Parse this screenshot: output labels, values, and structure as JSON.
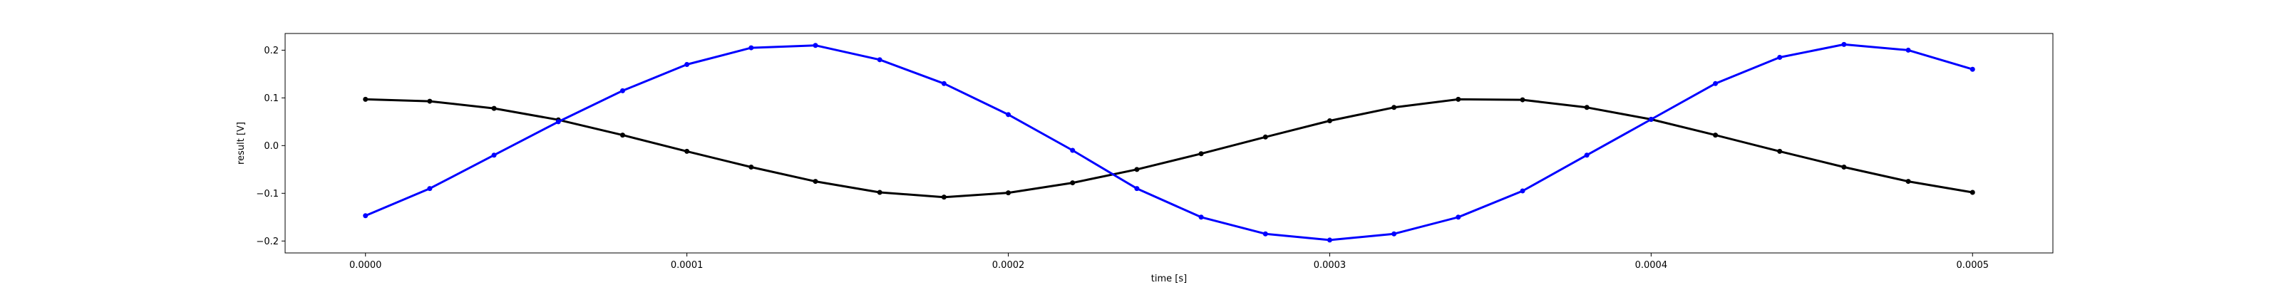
{
  "chart_data": {
    "type": "scatter",
    "title": "",
    "xlabel": "time [s]",
    "ylabel": "result [V]",
    "xlim": [
      -2.5e-05,
      0.000525
    ],
    "ylim": [
      -0.225,
      0.235
    ],
    "xticks": [
      0.0,
      0.0001,
      0.0002,
      0.0003,
      0.0004,
      0.0005
    ],
    "xtick_labels": [
      "0.0000",
      "0.0001",
      "0.0002",
      "0.0003",
      "0.0004",
      "0.0005"
    ],
    "yticks": [
      -0.2,
      -0.1,
      0.0,
      0.1,
      0.2
    ],
    "ytick_labels": [
      "−0.2",
      "−0.1",
      "0.0",
      "0.1",
      "0.2"
    ],
    "grid": false,
    "legend": "none",
    "series": [
      {
        "color": "#000000",
        "marker": "dot",
        "x": [
          0.0,
          2e-05,
          4e-05,
          6e-05,
          8e-05,
          0.0001,
          0.00012,
          0.00014,
          0.00016,
          0.00018,
          0.0002,
          0.00022,
          0.00024,
          0.00026,
          0.00028,
          0.0003,
          0.00032,
          0.00034,
          0.00036,
          0.00038,
          0.0004,
          0.00042,
          0.00044,
          0.00046,
          0.00048,
          0.0005
        ],
        "values": [
          0.097,
          0.093,
          0.078,
          0.054,
          0.022,
          -0.012,
          -0.045,
          -0.075,
          -0.098,
          -0.108,
          -0.099,
          -0.078,
          -0.05,
          -0.017,
          0.018,
          0.052,
          0.08,
          0.097,
          0.096,
          0.08,
          0.055,
          0.022,
          -0.012,
          -0.045,
          -0.075,
          -0.098
        ]
      },
      {
        "color": "#0000ff",
        "marker": "dot",
        "x": [
          0.0,
          2e-05,
          4e-05,
          6e-05,
          8e-05,
          0.0001,
          0.00012,
          0.00014,
          0.00016,
          0.00018,
          0.0002,
          0.00022,
          0.00024,
          0.00026,
          0.00028,
          0.0003,
          0.00032,
          0.00034,
          0.00036,
          0.00038,
          0.0004,
          0.00042,
          0.00044,
          0.00046,
          0.00048,
          0.0005
        ],
        "values": [
          -0.147,
          -0.09,
          -0.02,
          0.05,
          0.115,
          0.17,
          0.205,
          0.21,
          0.18,
          0.13,
          0.065,
          -0.01,
          -0.09,
          -0.15,
          -0.185,
          -0.198,
          -0.185,
          -0.15,
          -0.095,
          -0.02,
          0.055,
          0.13,
          0.185,
          0.212,
          0.2,
          0.16
        ]
      }
    ]
  }
}
